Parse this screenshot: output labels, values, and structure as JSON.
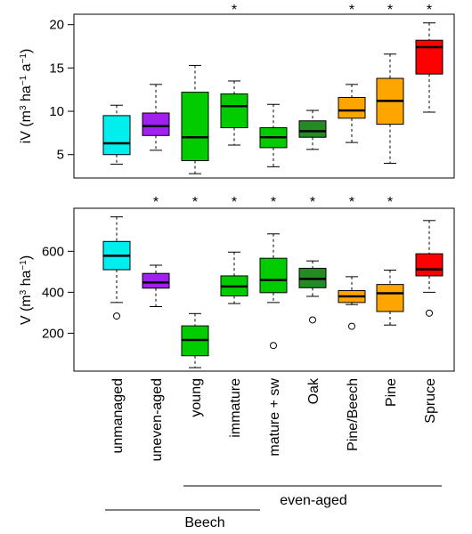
{
  "chart_data": [
    {
      "type": "boxplot",
      "ylabel": "iV (m³ ha⁻¹ a⁻¹)",
      "ylabel_parts": {
        "main": "iV (m",
        "sup1": "3",
        "mid": " ha",
        "sup2": "−1",
        "mid2": " a",
        "sup3": "−1",
        "end": ")"
      },
      "yticks": [
        5,
        10,
        15,
        20
      ],
      "ylim": [
        2.3,
        21.2
      ],
      "boxes": [
        {
          "category": "unmanaged",
          "color": "#00eeee",
          "whisker_low": 3.9,
          "q1": 5.0,
          "median": 6.3,
          "q3": 9.5,
          "whisker_high": 10.7,
          "outliers": [],
          "star": false
        },
        {
          "category": "uneven-aged",
          "color": "#a020f0",
          "whisker_low": 5.5,
          "q1": 7.2,
          "median": 8.3,
          "q3": 9.8,
          "whisker_high": 13.1,
          "outliers": [],
          "star": false
        },
        {
          "category": "young",
          "color": "#00cc00",
          "whisker_low": 2.8,
          "q1": 4.3,
          "median": 7.0,
          "q3": 12.2,
          "whisker_high": 15.3,
          "outliers": [],
          "star": false
        },
        {
          "category": "immature",
          "color": "#00cc00",
          "whisker_low": 6.1,
          "q1": 8.1,
          "median": 10.6,
          "q3": 12.0,
          "whisker_high": 13.5,
          "outliers": [],
          "star": true
        },
        {
          "category": "mature + sw",
          "color": "#00cc00",
          "whisker_low": 3.6,
          "q1": 5.8,
          "median": 7.0,
          "q3": 8.1,
          "whisker_high": 10.8,
          "outliers": [],
          "star": false
        },
        {
          "category": "Oak",
          "color": "#228b22",
          "whisker_low": 5.6,
          "q1": 7.0,
          "median": 7.7,
          "q3": 8.9,
          "whisker_high": 10.1,
          "outliers": [],
          "star": false
        },
        {
          "category": "Pine/Beech",
          "color": "#ffa500",
          "whisker_low": 6.4,
          "q1": 9.2,
          "median": 10.1,
          "q3": 11.6,
          "whisker_high": 13.1,
          "outliers": [],
          "star": true
        },
        {
          "category": "Pine",
          "color": "#ffa500",
          "whisker_low": 4.0,
          "q1": 8.5,
          "median": 11.2,
          "q3": 13.8,
          "whisker_high": 16.6,
          "outliers": [],
          "star": true
        },
        {
          "category": "Spruce",
          "color": "#ff0000",
          "whisker_low": 9.9,
          "q1": 14.3,
          "median": 17.4,
          "q3": 18.2,
          "whisker_high": 20.2,
          "outliers": [],
          "star": true
        }
      ]
    },
    {
      "type": "boxplot",
      "ylabel": "V (m³ ha⁻¹)",
      "ylabel_parts": {
        "main": "V (m",
        "sup1": "3",
        "mid": " ha",
        "sup2": "−1",
        "end": ")"
      },
      "yticks": [
        200,
        400,
        600
      ],
      "ylim": [
        15,
        810
      ],
      "boxes": [
        {
          "category": "unmanaged",
          "color": "#00eeee",
          "whisker_low": 350,
          "q1": 510,
          "median": 578,
          "q3": 648,
          "whisker_high": 768,
          "outliers": [
            284
          ],
          "star": false
        },
        {
          "category": "uneven-aged",
          "color": "#a020f0",
          "whisker_low": 330,
          "q1": 420,
          "median": 448,
          "q3": 492,
          "whisker_high": 532,
          "outliers": [],
          "star": true
        },
        {
          "category": "young",
          "color": "#00cc00",
          "whisker_low": 32,
          "q1": 90,
          "median": 167,
          "q3": 236,
          "whisker_high": 296,
          "outliers": [],
          "star": true
        },
        {
          "category": "immature",
          "color": "#00cc00",
          "whisker_low": 345,
          "q1": 382,
          "median": 428,
          "q3": 480,
          "whisker_high": 596,
          "outliers": [],
          "star": true
        },
        {
          "category": "mature + sw",
          "color": "#00cc00",
          "whisker_low": 350,
          "q1": 398,
          "median": 460,
          "q3": 566,
          "whisker_high": 685,
          "outliers": [
            140
          ],
          "star": true
        },
        {
          "category": "Oak",
          "color": "#228b22",
          "whisker_low": 380,
          "q1": 422,
          "median": 465,
          "q3": 517,
          "whisker_high": 553,
          "outliers": [
            265
          ],
          "star": true
        },
        {
          "category": "Pine/Beech",
          "color": "#ffa500",
          "whisker_low": 340,
          "q1": 350,
          "median": 380,
          "q3": 408,
          "whisker_high": 476,
          "outliers": [
            234
          ],
          "star": true
        },
        {
          "category": "Pine",
          "color": "#ffa500",
          "whisker_low": 240,
          "q1": 306,
          "median": 395,
          "q3": 438,
          "whisker_high": 508,
          "outliers": [],
          "star": true
        },
        {
          "category": "Spruce",
          "color": "#ff0000",
          "whisker_low": 400,
          "q1": 480,
          "median": 512,
          "q3": 588,
          "whisker_high": 750,
          "outliers": [
            298
          ],
          "star": false
        }
      ]
    }
  ],
  "star_symbol": "*",
  "categories": [
    "unmanaged",
    "uneven-aged",
    "young",
    "immature",
    "mature + sw",
    "Oak",
    "Pine/Beech",
    "Pine",
    "Spruce"
  ],
  "groups": [
    {
      "label": "even-aged",
      "span": [
        "young",
        "Spruce"
      ]
    },
    {
      "label": "Beech",
      "span": [
        "unmanaged",
        "mature + sw"
      ]
    }
  ]
}
